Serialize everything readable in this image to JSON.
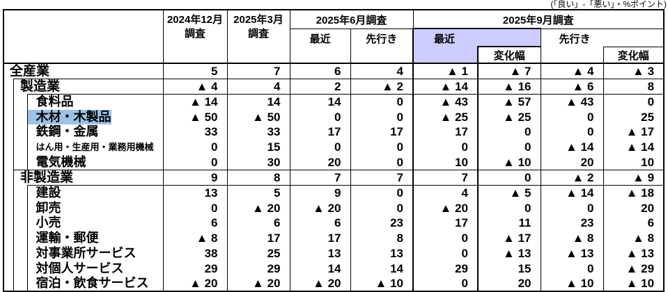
{
  "note": "(「良い」-「悪い」・%ポイント)",
  "colors": {
    "september_recent_header_fill": "#ccccff",
    "selected_text_highlight": "#9cc2e5",
    "border": "#000000"
  },
  "header": {
    "dec_line1": "2024年12月",
    "dec_line2": "調査",
    "mar_line1": "2025年3月",
    "mar_line2": "調査",
    "jun": "2025年6月調査",
    "jun_recent": "最近",
    "jun_forecast": "先行き",
    "sep": "2025年9月調査",
    "sep_recent": "最近",
    "sep_change1": "変化幅",
    "sep_forecast": "先行き",
    "sep_change2": "変化幅"
  },
  "table": {
    "rows": [
      {
        "label": "全産業",
        "level": 0,
        "cells": [
          "5",
          "7",
          "6",
          "4",
          "▲ 1",
          "▲ 7",
          "▲ 4",
          "▲ 3"
        ]
      },
      {
        "label": "製造業",
        "level": 1,
        "cells": [
          "▲ 4",
          "4",
          "2",
          "▲ 2",
          "▲ 14",
          "▲ 16",
          "▲ 6",
          "8"
        ]
      },
      {
        "label": "食料品",
        "level": 2,
        "cells": [
          "▲ 14",
          "14",
          "14",
          "0",
          "▲ 43",
          "▲ 57",
          "▲ 43",
          "0"
        ]
      },
      {
        "label": "木材・木製品",
        "level": 2,
        "highlighted": true,
        "cells": [
          "▲ 50",
          "▲ 50",
          "0",
          "0",
          "▲ 25",
          "▲ 25",
          "0",
          "25"
        ]
      },
      {
        "label": "鉄鋼・金属",
        "level": 2,
        "cells": [
          "33",
          "33",
          "17",
          "17",
          "17",
          "0",
          "0",
          "▲ 17"
        ]
      },
      {
        "label": "はん用・生産用・業務用機械",
        "level": 2,
        "compact": true,
        "cells": [
          "0",
          "15",
          "0",
          "0",
          "0",
          "0",
          "▲ 14",
          "▲ 14"
        ]
      },
      {
        "label": "電気機械",
        "level": 2,
        "cells": [
          "0",
          "30",
          "20",
          "0",
          "10",
          "▲ 10",
          "20",
          "10"
        ]
      },
      {
        "label": "非製造業",
        "level": 1,
        "cells": [
          "9",
          "8",
          "7",
          "7",
          "7",
          "0",
          "▲ 2",
          "▲ 9"
        ]
      },
      {
        "label": "建設",
        "level": 2,
        "cells": [
          "13",
          "5",
          "9",
          "0",
          "4",
          "▲ 5",
          "▲ 14",
          "▲ 18"
        ]
      },
      {
        "label": "卸売",
        "level": 2,
        "cells": [
          "0",
          "▲ 20",
          "▲ 20",
          "0",
          "▲ 20",
          "0",
          "0",
          "20"
        ]
      },
      {
        "label": "小売",
        "level": 2,
        "cells": [
          "6",
          "6",
          "6",
          "23",
          "17",
          "11",
          "23",
          "6"
        ]
      },
      {
        "label": "運輸・郵便",
        "level": 2,
        "cells": [
          "▲ 8",
          "17",
          "17",
          "8",
          "0",
          "▲ 17",
          "▲ 8",
          "▲ 8"
        ]
      },
      {
        "label": "対事業所サービス",
        "level": 2,
        "cells": [
          "38",
          "25",
          "13",
          "13",
          "0",
          "▲ 13",
          "▲ 13",
          "▲ 13"
        ]
      },
      {
        "label": "対個人サービス",
        "level": 2,
        "cells": [
          "29",
          "29",
          "14",
          "14",
          "29",
          "15",
          "0",
          "▲ 29"
        ]
      },
      {
        "label": "宿泊・飲食サービス",
        "level": 2,
        "cells": [
          "▲ 20",
          "▲ 20",
          "▲ 20",
          "▲ 10",
          "0",
          "20",
          "▲ 10",
          "▲ 10"
        ]
      }
    ]
  }
}
